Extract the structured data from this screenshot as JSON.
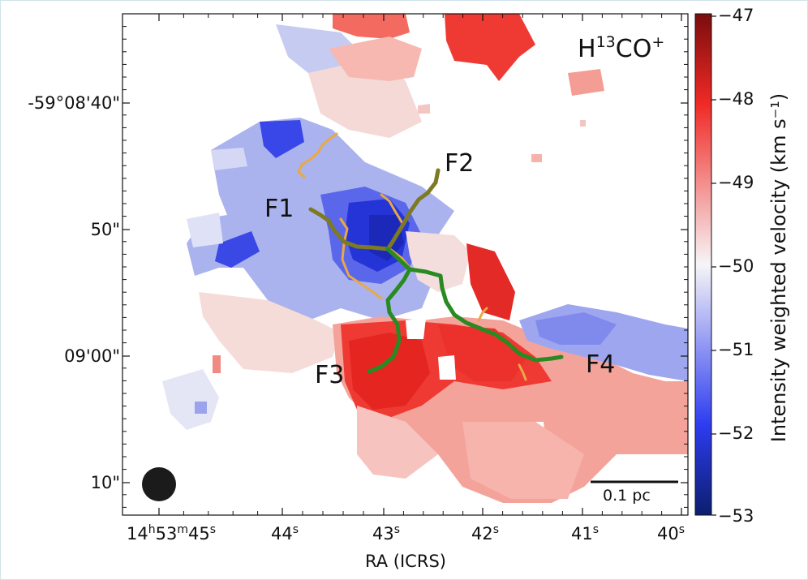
{
  "figure": {
    "molecule_label": "H",
    "molecule_sup": "13",
    "molecule_rest": "CO",
    "molecule_charge": "+",
    "scale_bar_label": "0.1 pc",
    "filament_labels": [
      "F1",
      "F2",
      "F3",
      "F4"
    ],
    "x_axis_title": "RA (ICRS)",
    "colorbar_title": "Intensity weighted velocity (km s⁻¹)",
    "y_ticks": [
      "-59°08'40\"",
      "50\"",
      "09'00\"",
      "10\""
    ],
    "x_ticks": [
      {
        "main": "14",
        "parts": [
          [
            "h",
            "53"
          ],
          [
            "m",
            "45"
          ],
          [
            "s",
            ""
          ]
        ]
      },
      {
        "main": "44",
        "parts": [
          [
            "s",
            ""
          ]
        ]
      },
      {
        "main": "43",
        "parts": [
          [
            "s",
            ""
          ]
        ]
      },
      {
        "main": "42",
        "parts": [
          [
            "s",
            ""
          ]
        ]
      },
      {
        "main": "41",
        "parts": [
          [
            "s",
            ""
          ]
        ]
      },
      {
        "main": "40",
        "parts": [
          [
            "s",
            ""
          ]
        ]
      }
    ],
    "colorbar_ticks": [
      "−47",
      "−48",
      "−49",
      "−50",
      "−51",
      "−52",
      "−53"
    ],
    "colormap": {
      "low": "#0c1e6e",
      "mid_low": "#2d3cf0",
      "center": "#f7f5f7",
      "mid_high": "#f02a26",
      "high": "#7a0d0d"
    },
    "filament_colors": {
      "F1": "#7d7a22",
      "F2": "#7d7a22",
      "F3": "#2a8a22",
      "F4": "#2a8a22",
      "branches": "#eaa845"
    },
    "beam_color": "#1b1b1b"
  }
}
